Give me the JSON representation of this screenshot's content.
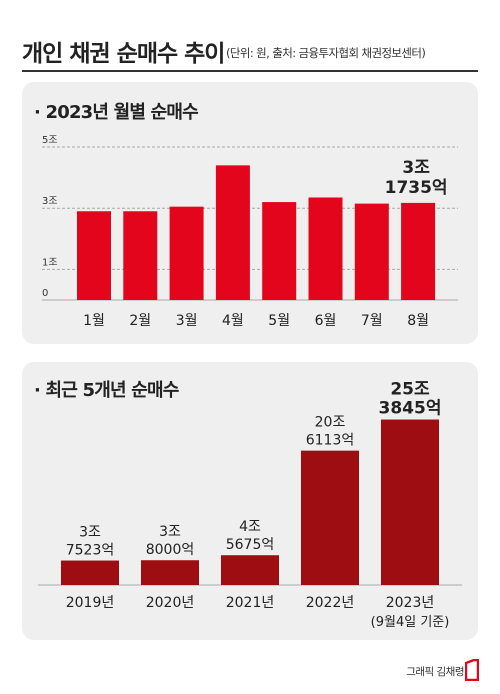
{
  "header": {
    "title": "개인 채권 순매수 추이",
    "note": "(단위: 원, 출처: 금융투자협회 채권정보센터)"
  },
  "chart_data": [
    {
      "type": "bar",
      "title": "· 2023년 월별 순매수",
      "unit": "조원",
      "categories": [
        "1월",
        "2월",
        "3월",
        "4월",
        "5월",
        "6월",
        "7월",
        "8월"
      ],
      "values": [
        2.9,
        2.9,
        3.05,
        4.4,
        3.2,
        3.35,
        3.15,
        3.1735
      ],
      "ylim": [
        0,
        5
      ],
      "y_ticks": [
        {
          "value": 5,
          "label": "5조"
        },
        {
          "value": 3,
          "label": "3조"
        },
        {
          "value": 1,
          "label": "1조"
        },
        {
          "value": 0,
          "label": "0"
        }
      ],
      "annotations": [
        {
          "category": "8월",
          "lines": [
            "3조",
            "1735억"
          ]
        }
      ],
      "color": "#e3051b",
      "grid": true
    },
    {
      "type": "bar",
      "title": "· 최근 5개년 순매수",
      "unit": "억원",
      "categories": [
        "2019년",
        "2020년",
        "2021년",
        "2022년",
        "2023년"
      ],
      "category_notes": [
        "",
        "",
        "",
        "",
        "(9월4일 기준)"
      ],
      "values": [
        37523,
        38000,
        45675,
        206113,
        253845
      ],
      "ylim": [
        0,
        270000
      ],
      "data_labels": [
        [
          "3조",
          "7523억"
        ],
        [
          "3조",
          "8000억"
        ],
        [
          "4조",
          "5675억"
        ],
        [
          "20조",
          "6113억"
        ],
        [
          "25조",
          "3845억"
        ]
      ],
      "color": "#9e0d12",
      "grid": false
    }
  ],
  "credit": {
    "text": "그래픽 김채령",
    "logo": "publisher-logo-icon"
  },
  "colors": {
    "monthly_bar": "#e3051b",
    "yearly_bar": "#9e0d12",
    "panel_bg": "#efefef"
  }
}
